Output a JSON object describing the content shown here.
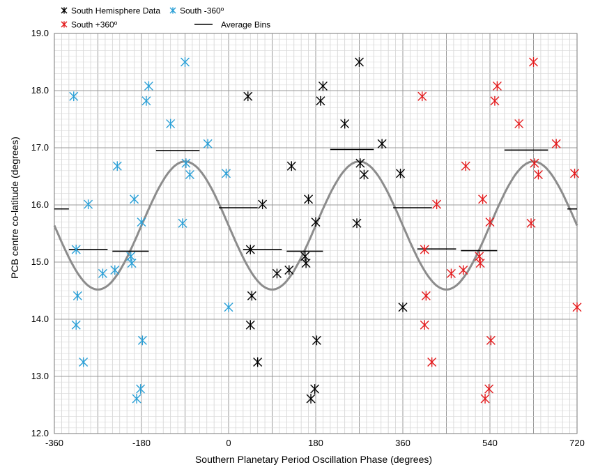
{
  "chart_data": {
    "type": "scatter",
    "title": "",
    "xlabel": "Southern Planetary Period Oscillation Phase (degrees)",
    "ylabel": "PCB centre co-latitude (degrees)",
    "xlim": [
      -360,
      720
    ],
    "ylim": [
      12.0,
      19.0
    ],
    "x_ticks": [
      -360,
      -180,
      0,
      180,
      360,
      540,
      720
    ],
    "x_tick_labels": [
      "-360",
      "-180",
      "0",
      "180",
      "360",
      "540",
      "720"
    ],
    "y_ticks": [
      12,
      13,
      14,
      15,
      16,
      17,
      18,
      19
    ],
    "y_tick_labels": [
      "12.0",
      "13.0",
      "14.0",
      "15.0",
      "16.0",
      "17.0",
      "18.0",
      "19.0"
    ],
    "grid": true,
    "legend_position": "top-left, above plot",
    "legend": [
      {
        "label": "South Hemisphere Data",
        "color": "#000000",
        "marker": "asterisk"
      },
      {
        "label": "South -360º",
        "color": "#2a9fd6",
        "marker": "asterisk"
      },
      {
        "label": "South +360º",
        "color": "#e31a1c",
        "marker": "asterisk"
      },
      {
        "label": "Average Bins",
        "color": "#000000",
        "marker": "line"
      }
    ],
    "series": [
      {
        "name": "South Hemisphere Data",
        "color": "#000000",
        "points": [
          [
            40,
            17.9
          ],
          [
            45,
            15.22
          ],
          [
            48,
            14.41
          ],
          [
            45,
            13.9
          ],
          [
            60,
            13.25
          ],
          [
            70,
            16.01
          ],
          [
            100,
            14.8
          ],
          [
            125,
            14.86
          ],
          [
            130,
            16.68
          ],
          [
            158,
            15.1
          ],
          [
            160,
            14.98
          ],
          [
            165,
            16.1
          ],
          [
            170,
            12.61
          ],
          [
            178,
            12.78
          ],
          [
            180,
            15.7
          ],
          [
            182,
            13.63
          ],
          [
            190,
            17.82
          ],
          [
            195,
            18.08
          ],
          [
            240,
            17.42
          ],
          [
            265,
            15.68
          ],
          [
            270,
            18.5
          ],
          [
            272,
            16.73
          ],
          [
            280,
            16.53
          ],
          [
            317,
            17.07
          ],
          [
            355,
            16.55
          ],
          [
            360,
            14.21
          ]
        ]
      },
      {
        "name": "South -360º",
        "color": "#2a9fd6",
        "points": [
          [
            -320,
            17.9
          ],
          [
            -315,
            15.22
          ],
          [
            -312,
            14.41
          ],
          [
            -315,
            13.9
          ],
          [
            -300,
            13.25
          ],
          [
            -290,
            16.01
          ],
          [
            -260,
            14.8
          ],
          [
            -235,
            14.86
          ],
          [
            -230,
            16.68
          ],
          [
            -202,
            15.1
          ],
          [
            -200,
            14.98
          ],
          [
            -195,
            16.1
          ],
          [
            -190,
            12.61
          ],
          [
            -182,
            12.78
          ],
          [
            -180,
            15.7
          ],
          [
            -178,
            13.63
          ],
          [
            -170,
            17.82
          ],
          [
            -165,
            18.08
          ],
          [
            -120,
            17.42
          ],
          [
            -95,
            15.68
          ],
          [
            -90,
            18.5
          ],
          [
            -88,
            16.73
          ],
          [
            -80,
            16.53
          ],
          [
            -43,
            17.07
          ],
          [
            -5,
            16.55
          ],
          [
            0,
            14.21
          ]
        ]
      },
      {
        "name": "South +360º",
        "color": "#e31a1c",
        "points": [
          [
            400,
            17.9
          ],
          [
            405,
            15.22
          ],
          [
            408,
            14.41
          ],
          [
            405,
            13.9
          ],
          [
            420,
            13.25
          ],
          [
            430,
            16.01
          ],
          [
            460,
            14.8
          ],
          [
            485,
            14.86
          ],
          [
            490,
            16.68
          ],
          [
            518,
            15.1
          ],
          [
            520,
            14.98
          ],
          [
            525,
            16.1
          ],
          [
            530,
            12.61
          ],
          [
            538,
            12.78
          ],
          [
            540,
            15.7
          ],
          [
            542,
            13.63
          ],
          [
            550,
            17.82
          ],
          [
            555,
            18.08
          ],
          [
            600,
            17.42
          ],
          [
            625,
            15.68
          ],
          [
            630,
            18.5
          ],
          [
            632,
            16.73
          ],
          [
            640,
            16.53
          ],
          [
            677,
            17.07
          ],
          [
            715,
            16.55
          ],
          [
            720,
            14.21
          ]
        ]
      }
    ],
    "average_bins": [
      {
        "x": [
          -360,
          -330
        ],
        "y": 15.93
      },
      {
        "x": [
          -330,
          -250
        ],
        "y": 15.22
      },
      {
        "x": [
          -240,
          -165
        ],
        "y": 15.19
      },
      {
        "x": [
          -150,
          -60
        ],
        "y": 16.95
      },
      {
        "x": [
          -20,
          60
        ],
        "y": 15.95
      },
      {
        "x": [
          30,
          110
        ],
        "y": 15.22
      },
      {
        "x": [
          120,
          195
        ],
        "y": 15.19
      },
      {
        "x": [
          210,
          300
        ],
        "y": 16.97
      },
      {
        "x": [
          340,
          420
        ],
        "y": 15.95
      },
      {
        "x": [
          390,
          470
        ],
        "y": 15.23
      },
      {
        "x": [
          480,
          555
        ],
        "y": 15.2
      },
      {
        "x": [
          570,
          660
        ],
        "y": 16.96
      },
      {
        "x": [
          700,
          720
        ],
        "y": 15.93
      }
    ],
    "sine_fit": {
      "mean": 15.64,
      "amplitude": 1.12,
      "peak_phase": 270,
      "period": 360,
      "color": "#8c8c8c"
    }
  }
}
